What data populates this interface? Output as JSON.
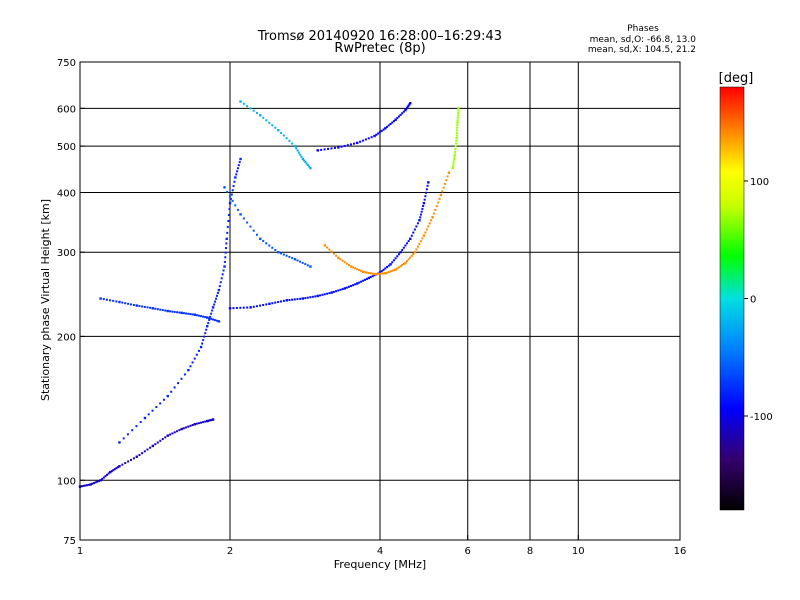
{
  "chart_data": {
    "type": "scatter",
    "title": "Tromsø 20140920 16:28:00–16:29:43",
    "subtitle": "RwPretec (8p)",
    "xlabel": "Frequency [MHz]",
    "ylabel": "Stationary phase Virtual Height [km]",
    "x_scale": "log",
    "y_scale": "log",
    "xlim": [
      1,
      16
    ],
    "ylim": [
      75,
      750
    ],
    "x_ticks": [
      1,
      2,
      4,
      6,
      8,
      10,
      16
    ],
    "y_ticks": [
      75,
      100,
      200,
      300,
      400,
      500,
      600,
      750
    ],
    "x_grid": [
      2,
      4,
      6,
      8,
      10
    ],
    "y_grid": [
      100,
      200,
      300,
      400,
      500,
      600
    ],
    "grid": true,
    "phase_info": {
      "title": "Phases",
      "line_o": "mean, sd,O: -66.8, 13.0",
      "line_x": "mean, sd,X: 104.5, 21.2"
    },
    "colorbar": {
      "label": "[deg]",
      "range": [
        -180,
        180
      ],
      "ticks": [
        "100",
        "0",
        "-100"
      ],
      "tick_values": [
        100,
        0,
        -100
      ]
    },
    "traces": [
      {
        "phase": -110,
        "points": [
          [
            1.0,
            97
          ],
          [
            1.05,
            98
          ],
          [
            1.1,
            100
          ],
          [
            1.15,
            104
          ],
          [
            1.2,
            107
          ],
          [
            1.3,
            112
          ],
          [
            1.4,
            118
          ],
          [
            1.5,
            124
          ],
          [
            1.6,
            128
          ],
          [
            1.7,
            131
          ],
          [
            1.8,
            133
          ],
          [
            1.85,
            134
          ]
        ]
      },
      {
        "phase": -75,
        "points": [
          [
            1.1,
            240
          ],
          [
            1.2,
            236
          ],
          [
            1.3,
            232
          ],
          [
            1.4,
            229
          ],
          [
            1.5,
            226
          ],
          [
            1.6,
            224
          ],
          [
            1.7,
            222
          ],
          [
            1.8,
            219
          ],
          [
            1.9,
            215
          ]
        ]
      },
      {
        "phase": -80,
        "points": [
          [
            1.2,
            120
          ],
          [
            1.35,
            135
          ],
          [
            1.5,
            150
          ],
          [
            1.65,
            170
          ],
          [
            1.75,
            190
          ],
          [
            1.8,
            210
          ],
          [
            1.85,
            230
          ],
          [
            1.9,
            250
          ],
          [
            1.95,
            280
          ],
          [
            1.97,
            320
          ],
          [
            2.0,
            380
          ],
          [
            2.05,
            430
          ],
          [
            2.1,
            470
          ]
        ]
      },
      {
        "phase": -90,
        "points": [
          [
            2.0,
            229
          ],
          [
            2.2,
            230
          ],
          [
            2.4,
            234
          ],
          [
            2.6,
            238
          ],
          [
            2.8,
            240
          ],
          [
            3.0,
            243
          ],
          [
            3.2,
            247
          ],
          [
            3.4,
            252
          ],
          [
            3.6,
            258
          ],
          [
            3.8,
            265
          ],
          [
            4.0,
            272
          ],
          [
            4.2,
            283
          ],
          [
            4.4,
            300
          ],
          [
            4.6,
            320
          ],
          [
            4.8,
            350
          ],
          [
            4.9,
            380
          ],
          [
            5.0,
            420
          ]
        ]
      },
      {
        "phase": 140,
        "points": [
          [
            3.1,
            310
          ],
          [
            3.3,
            292
          ],
          [
            3.5,
            280
          ],
          [
            3.7,
            273
          ],
          [
            3.9,
            270
          ],
          [
            4.1,
            271
          ],
          [
            4.3,
            276
          ],
          [
            4.5,
            285
          ],
          [
            4.7,
            300
          ],
          [
            4.9,
            325
          ],
          [
            5.1,
            355
          ],
          [
            5.3,
            395
          ],
          [
            5.5,
            440
          ]
        ]
      },
      {
        "phase": -95,
        "points": [
          [
            3.0,
            490
          ],
          [
            3.3,
            497
          ],
          [
            3.6,
            508
          ],
          [
            3.9,
            525
          ],
          [
            4.1,
            545
          ],
          [
            4.3,
            568
          ],
          [
            4.5,
            595
          ],
          [
            4.6,
            615
          ]
        ]
      },
      {
        "phase": 70,
        "points": [
          [
            5.6,
            450
          ],
          [
            5.65,
            480
          ],
          [
            5.7,
            520
          ],
          [
            5.72,
            560
          ],
          [
            5.75,
            600
          ]
        ]
      },
      {
        "phase": -20,
        "points": [
          [
            2.1,
            620
          ],
          [
            2.3,
            580
          ],
          [
            2.5,
            540
          ],
          [
            2.7,
            500
          ],
          [
            2.8,
            470
          ],
          [
            2.9,
            450
          ]
        ]
      },
      {
        "phase": -60,
        "points": [
          [
            1.95,
            410
          ],
          [
            2.1,
            360
          ],
          [
            2.3,
            320
          ],
          [
            2.5,
            300
          ],
          [
            2.7,
            290
          ],
          [
            2.9,
            280
          ]
        ]
      }
    ]
  }
}
